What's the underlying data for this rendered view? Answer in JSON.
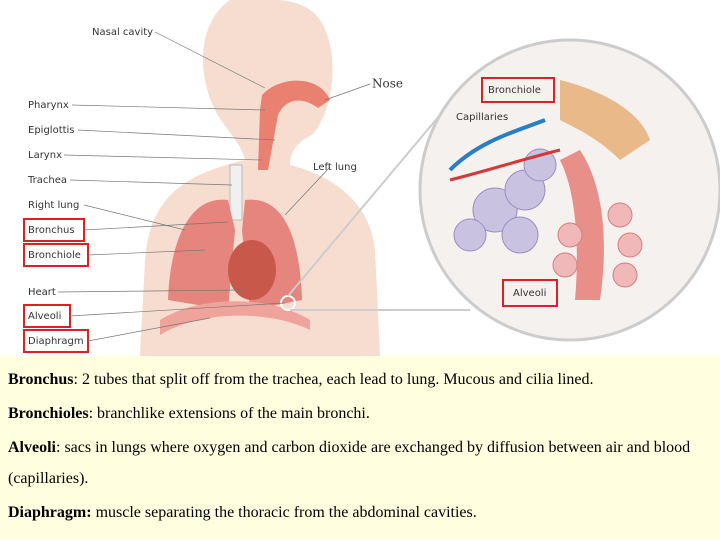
{
  "diagram": {
    "labels": [
      "Nasal cavity",
      "Pharynx",
      "Epiglottis",
      "Larynx",
      "Trachea",
      "Right lung",
      "Bronchus",
      "Bronchiole",
      "Heart",
      "Alveoli",
      "Diaphragm"
    ],
    "nose_label": "Nose",
    "left_lung_label": "Left lung",
    "inset_labels": [
      "Bronchiole",
      "Capillaries",
      "Alveoli"
    ]
  },
  "definitions": [
    {
      "term": "Bronchus",
      "text": ": 2 tubes that split off from the trachea, each lead to lung. Mucous and cilia lined."
    },
    {
      "term": "Bronchioles",
      "text": ": branchlike extensions of the main bronchi."
    },
    {
      "term": "Alveoli",
      "text": ": sacs in lungs where oxygen and carbon dioxide are exchanged by diffusion between air and blood (capillaries)."
    },
    {
      "term": "Diaphragm:",
      "text": "muscle separating the thoracic from the abdominal cavities."
    }
  ]
}
